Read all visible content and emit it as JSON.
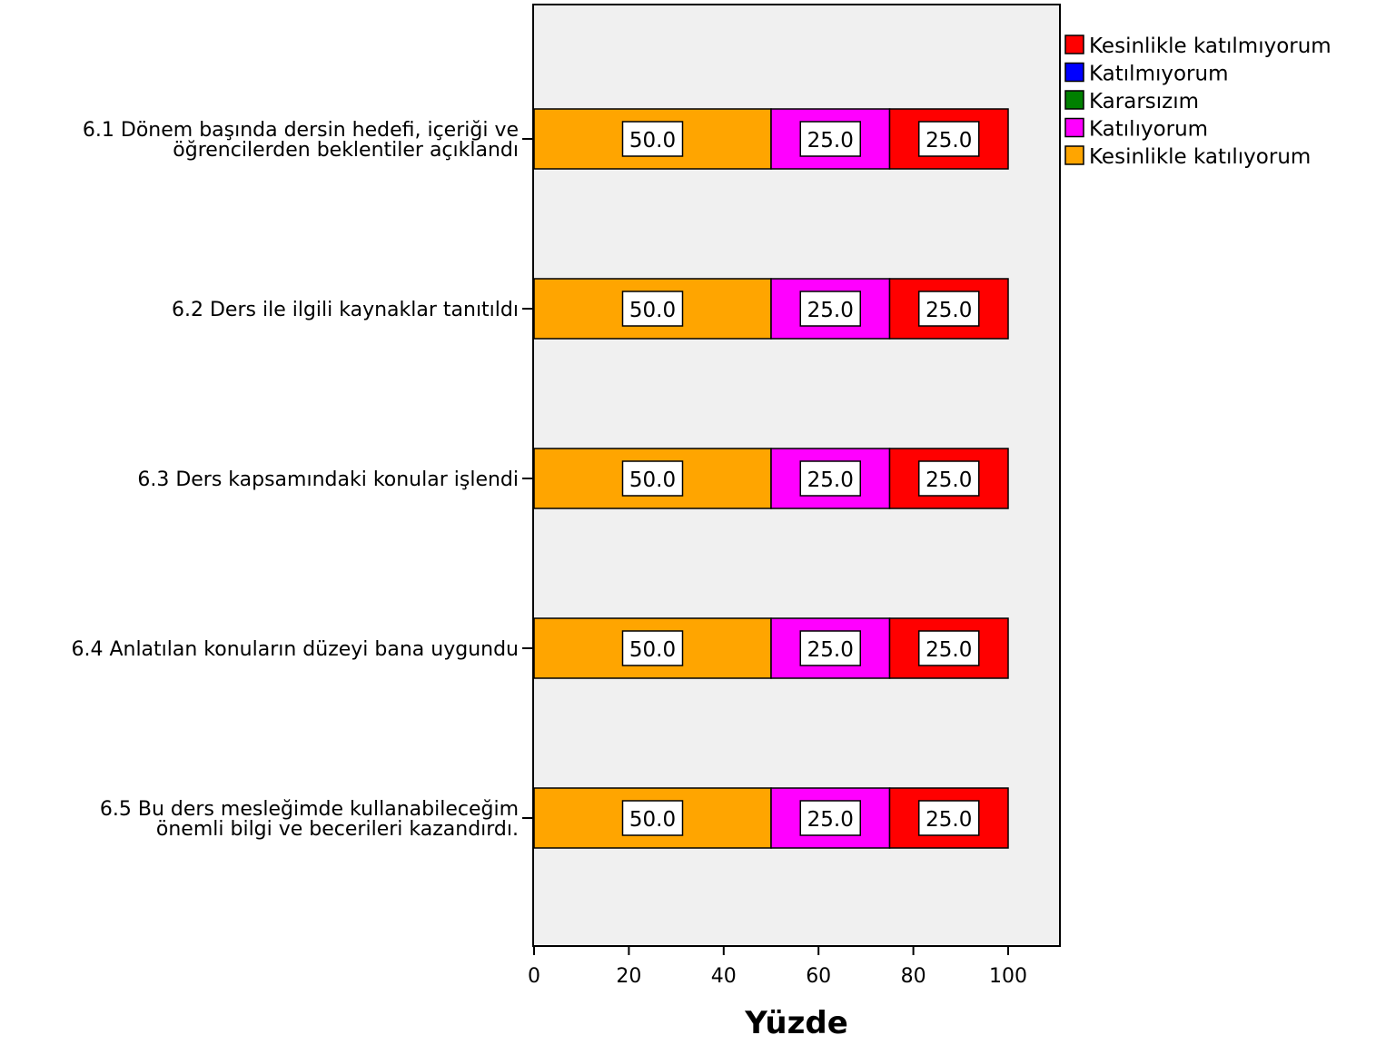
{
  "chart_data": {
    "type": "bar",
    "orientation": "horizontal",
    "stacked": true,
    "xlabel": "Yüzde",
    "xlim": [
      0,
      110
    ],
    "xticks": [
      0,
      20,
      40,
      60,
      80,
      100
    ],
    "grid": false,
    "legend_position": "top-right",
    "categories": [
      [
        "6.1 Dönem başında dersin hedefi, içeriği ve",
        "öğrencilerden beklentiler açıklandı"
      ],
      [
        "6.2 Ders ile ilgili kaynaklar tanıtıldı"
      ],
      [
        "6.3 Ders kapsamındaki konular işlendi"
      ],
      [
        "6.4 Anlatılan konuların düzeyi bana uygundu"
      ],
      [
        "6.5 Bu ders mesleğimde kullanabileceğim",
        "önemli bilgi ve becerileri kazandırdı."
      ]
    ],
    "legend": [
      {
        "name": "Kesinlikle katılmıyorum",
        "color": "#ff0000"
      },
      {
        "name": "Katılmıyorum",
        "color": "#0000ff"
      },
      {
        "name": "Kararsızım",
        "color": "#008000"
      },
      {
        "name": "Katılıyorum",
        "color": "#ff00ff"
      },
      {
        "name": "Kesinlikle katılıyorum",
        "color": "#ffa500"
      }
    ],
    "series": [
      {
        "name": "Kesinlikle katılıyorum",
        "color": "#ffa500",
        "values": [
          50.0,
          50.0,
          50.0,
          50.0,
          50.0
        ]
      },
      {
        "name": "Katılıyorum",
        "color": "#ff00ff",
        "values": [
          25.0,
          25.0,
          25.0,
          25.0,
          25.0
        ]
      },
      {
        "name": "Kesinlikle katılmıyorum",
        "color": "#ff0000",
        "values": [
          25.0,
          25.0,
          25.0,
          25.0,
          25.0
        ]
      }
    ],
    "plot_background": "#f0f0f0"
  }
}
